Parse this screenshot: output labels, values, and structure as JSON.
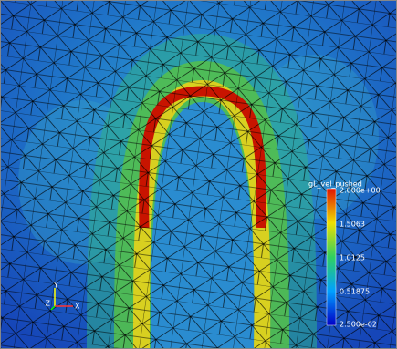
{
  "colorbar": {
    "title": "gL_vel_pushed",
    "labels": [
      "2.000e+00",
      "1.5063",
      "1.0125",
      "0.51875",
      "2.500e-02"
    ]
  },
  "axes": {
    "x": "X",
    "y": "Y",
    "z": "Z"
  }
}
